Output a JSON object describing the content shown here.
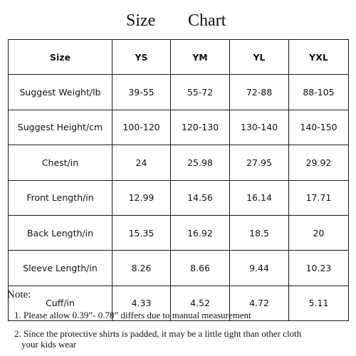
{
  "title": {
    "word1": "Size",
    "word2": "Chart"
  },
  "table": {
    "header": [
      "Size",
      "YS",
      "YM",
      "YL",
      "YXL"
    ],
    "rows": [
      {
        "label": "Suggest Weight/lb",
        "values": [
          "39-55",
          "55-72",
          "72-88",
          "88-105"
        ]
      },
      {
        "label": "Suggest Height/cm",
        "values": [
          "100-120",
          "120-130",
          "130-140",
          "140-150"
        ]
      },
      {
        "label": "Chest/in",
        "values": [
          "24",
          "25.98",
          "27.95",
          "29.92"
        ]
      },
      {
        "label": "Front Length/in",
        "values": [
          "12.99",
          "14.56",
          "16.14",
          "17.71"
        ]
      },
      {
        "label": "Back Length/in",
        "values": [
          "15.35",
          "16.92",
          "18.5",
          "20"
        ]
      },
      {
        "label": "Sleeve Length/in",
        "values": [
          "8.26",
          "8.66",
          "9.44",
          "10.23"
        ]
      },
      {
        "label": "Cuff/in",
        "values": [
          "4.33",
          "4.52",
          "4.72",
          "5.11"
        ]
      }
    ]
  },
  "notes": {
    "heading": "Note:",
    "item1": "1. Please allow 0.39”- 0.78” differs due to manual measurement",
    "item2_line1": "2. Since the protective shirts is padded, it may be a little tight than other cloth",
    "item2_line2": "your kids wear"
  }
}
